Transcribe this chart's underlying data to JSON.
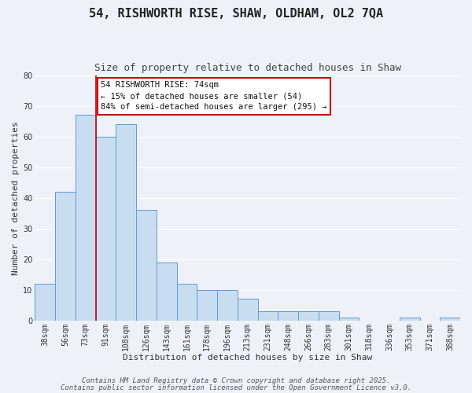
{
  "title": "54, RISHWORTH RISE, SHAW, OLDHAM, OL2 7QA",
  "subtitle": "Size of property relative to detached houses in Shaw",
  "xlabel": "Distribution of detached houses by size in Shaw",
  "ylabel": "Number of detached properties",
  "bar_labels": [
    "38sqm",
    "56sqm",
    "73sqm",
    "91sqm",
    "108sqm",
    "126sqm",
    "143sqm",
    "161sqm",
    "178sqm",
    "196sqm",
    "213sqm",
    "231sqm",
    "248sqm",
    "266sqm",
    "283sqm",
    "301sqm",
    "318sqm",
    "336sqm",
    "353sqm",
    "371sqm",
    "388sqm"
  ],
  "bar_values": [
    12,
    42,
    67,
    60,
    64,
    36,
    19,
    12,
    10,
    10,
    7,
    3,
    3,
    3,
    3,
    1,
    0,
    0,
    1,
    0,
    1
  ],
  "bar_color": "#c9ddf0",
  "bar_edge_color": "#5b9bd5",
  "vline_color": "#cc0000",
  "vline_pos": 2.5,
  "ylim": [
    0,
    80
  ],
  "yticks": [
    0,
    10,
    20,
    30,
    40,
    50,
    60,
    70,
    80
  ],
  "annotation_title": "54 RISHWORTH RISE: 74sqm",
  "annotation_line1": "← 15% of detached houses are smaller (54)",
  "annotation_line2": "84% of semi-detached houses are larger (295) →",
  "annotation_box_color": "#ffffff",
  "annotation_box_edge": "#cc0000",
  "footer1": "Contains HM Land Registry data © Crown copyright and database right 2025.",
  "footer2": "Contains public sector information licensed under the Open Government Licence v3.0.",
  "background_color": "#eef2f8",
  "grid_color": "#ffffff",
  "title_fontsize": 11,
  "subtitle_fontsize": 9,
  "axis_label_fontsize": 8,
  "tick_fontsize": 7,
  "annotation_fontsize": 7.5,
  "footer_fontsize": 6.5
}
